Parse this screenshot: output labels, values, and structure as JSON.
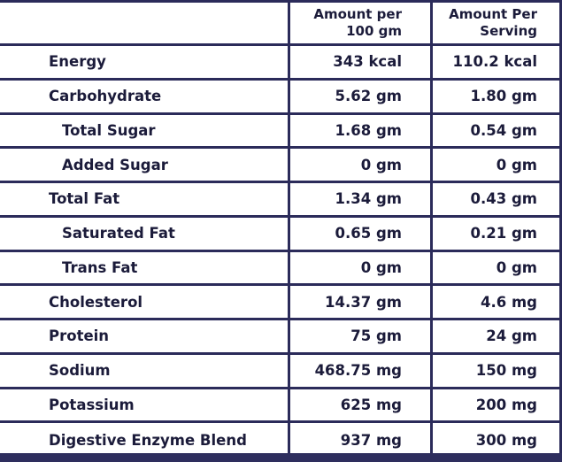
{
  "header": {
    "col_per_100": "Amount per\n100 gm",
    "col_per_serving": "Amount Per\nServing"
  },
  "rows": [
    {
      "name": "Energy",
      "per_100": "343 kcal",
      "per_serving": "110.2 kcal",
      "indent": false
    },
    {
      "name": "Carbohydrate",
      "per_100": "5.62 gm",
      "per_serving": "1.80 gm",
      "indent": false
    },
    {
      "name": "Total Sugar",
      "per_100": "1.68 gm",
      "per_serving": "0.54 gm",
      "indent": true
    },
    {
      "name": "Added Sugar",
      "per_100": "0 gm",
      "per_serving": "0 gm",
      "indent": true
    },
    {
      "name": "Total Fat",
      "per_100": "1.34 gm",
      "per_serving": "0.43 gm",
      "indent": false
    },
    {
      "name": "Saturated Fat",
      "per_100": "0.65 gm",
      "per_serving": "0.21 gm",
      "indent": true
    },
    {
      "name": "Trans Fat",
      "per_100": "0 gm",
      "per_serving": "0 gm",
      "indent": true
    },
    {
      "name": "Cholesterol",
      "per_100": "14.37 gm",
      "per_serving": "4.6 mg",
      "indent": false
    },
    {
      "name": "Protein",
      "per_100": "75 gm",
      "per_serving": "24 gm",
      "indent": false
    },
    {
      "name": "Sodium",
      "per_100": "468.75 mg",
      "per_serving": "150 mg",
      "indent": false
    },
    {
      "name": "Potassium",
      "per_100": "625 mg",
      "per_serving": "200 mg",
      "indent": false
    },
    {
      "name": "Digestive Enzyme Blend",
      "per_100": "937 mg",
      "per_serving": "300 mg",
      "indent": false
    }
  ],
  "colors": {
    "border": "#2b2b5a",
    "text": "#1b1b3a",
    "footer_band": "#2e2e5e"
  }
}
